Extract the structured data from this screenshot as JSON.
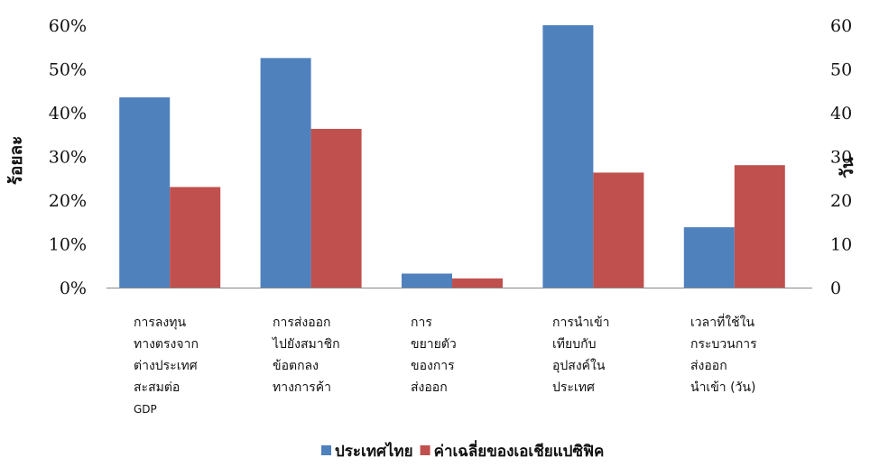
{
  "chart_data": {
    "type": "bar",
    "categories": [
      [
        "การลงทุน",
        "ทางตรงจาก",
        "ต่างประเทศ",
        "สะสมต่อ",
        "GDP"
      ],
      [
        "การส่งออก",
        "ไปยังสมาชิก",
        "ข้อตกลง",
        "ทางการค้า"
      ],
      [
        "การ",
        "ขยายตัว",
        "ของการ",
        "ส่งออก"
      ],
      [
        "การนำเข้า",
        "เทียบกับ",
        "อุปสงค์ใน",
        "ประเทศ"
      ],
      [
        "เวลาที่ใช้ใน",
        "กระบวนการ",
        "ส่งออก",
        "นำเข้า (วัน)"
      ]
    ],
    "series": [
      {
        "name": "ประเทศไทย",
        "values": [
          43.5,
          52.5,
          3.2,
          60,
          13.8
        ],
        "color": "#4f81bd"
      },
      {
        "name": "ค่าเฉลี่ยของเอเชียแปซิฟิค",
        "values": [
          23,
          36.3,
          2.1,
          26.3,
          28
        ],
        "color": "#c0504d"
      }
    ],
    "ylabel_left": "ร้อยละ",
    "ylabel_right": "วัน",
    "left_ticks": [
      "0%",
      "10%",
      "20%",
      "30%",
      "40%",
      "50%",
      "60%"
    ],
    "right_ticks": [
      "0",
      "10",
      "20",
      "30",
      "40",
      "50",
      "60"
    ],
    "ylim": [
      0,
      60
    ],
    "grid": false,
    "legend_position": "bottom"
  }
}
